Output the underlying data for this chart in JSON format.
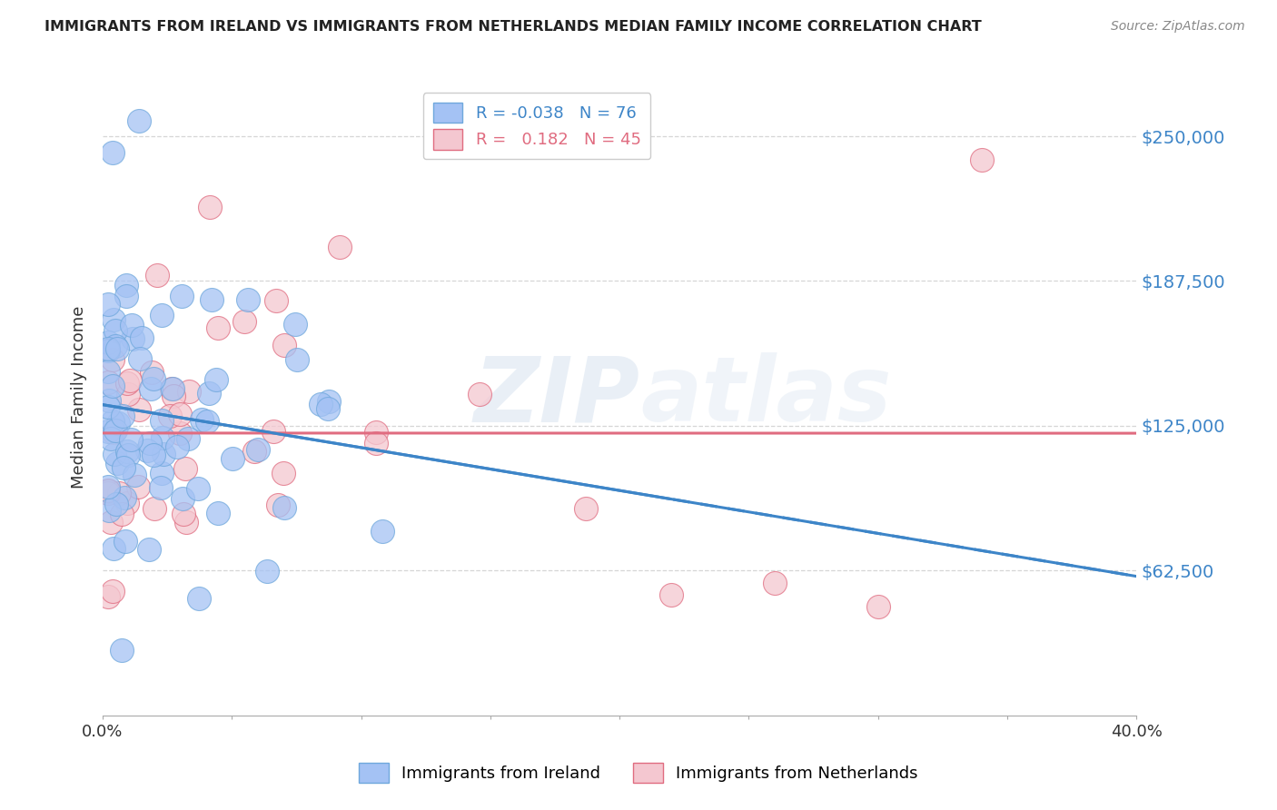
{
  "title": "IMMIGRANTS FROM IRELAND VS IMMIGRANTS FROM NETHERLANDS MEDIAN FAMILY INCOME CORRELATION CHART",
  "source": "Source: ZipAtlas.com",
  "ylabel": "Median Family Income",
  "xlim": [
    0.0,
    0.4
  ],
  "ylim": [
    0,
    275000
  ],
  "ytick_vals": [
    62500,
    125000,
    187500,
    250000
  ],
  "ytick_labels": [
    "$62,500",
    "$125,000",
    "$187,500",
    "$250,000"
  ],
  "xtick_vals": [
    0.0,
    0.05,
    0.1,
    0.15,
    0.2,
    0.25,
    0.3,
    0.35,
    0.4
  ],
  "xtick_labels": [
    "0.0%",
    "",
    "",
    "",
    "",
    "",
    "",
    "",
    "40.0%"
  ],
  "watermark": "ZIPatlas",
  "ireland_color_fill": "#a4c2f4",
  "ireland_color_edge": "#6fa8dc",
  "netherlands_color_fill": "#f4c7d0",
  "netherlands_color_edge": "#e06c80",
  "ireland_line_color": "#3d85c8",
  "netherlands_line_color": "#e06c80",
  "ireland_R": -0.038,
  "ireland_N": 76,
  "netherlands_R": 0.182,
  "netherlands_N": 45,
  "legend1_label": "R = -0.038   N = 76",
  "legend2_label": "R =   0.182   N = 45",
  "bottom_legend1": "Immigrants from Ireland",
  "bottom_legend2": "Immigrants from Netherlands"
}
